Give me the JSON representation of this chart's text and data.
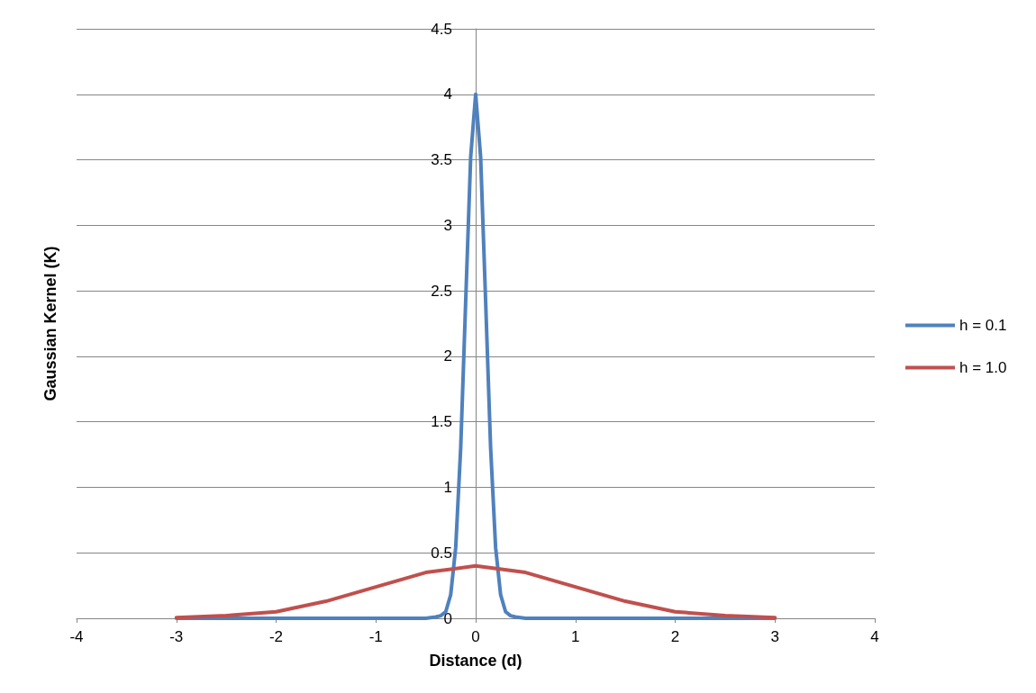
{
  "chart_data": {
    "type": "line",
    "xlabel": "Distance (d)",
    "ylabel": "Gaussian Kernel (K)",
    "xlim": [
      -4,
      4
    ],
    "xticks": [
      -4,
      -3,
      -2,
      -1,
      0,
      1,
      2,
      3,
      4
    ],
    "ylim": [
      0,
      4.5
    ],
    "yticks": [
      0,
      0.5,
      1,
      1.5,
      2,
      2.5,
      3,
      3.5,
      4,
      4.5
    ],
    "grid": "y",
    "legend": "right",
    "marker": "none",
    "line_style": "solid",
    "series": [
      {
        "name": "h = 0.1",
        "color": "#4f81bd",
        "x": [
          -3,
          -2,
          -1,
          -0.5,
          -0.4,
          -0.35,
          -0.3,
          -0.25,
          -0.2,
          -0.15,
          -0.1,
          -0.05,
          0,
          0.05,
          0.1,
          0.15,
          0.2,
          0.25,
          0.3,
          0.35,
          0.4,
          0.5,
          1,
          2,
          3
        ],
        "values": [
          0,
          0,
          0,
          0,
          0.01,
          0.02,
          0.05,
          0.18,
          0.54,
          1.3,
          2.42,
          3.52,
          4,
          3.52,
          2.42,
          1.3,
          0.54,
          0.18,
          0.05,
          0.02,
          0.01,
          0,
          0,
          0,
          0
        ]
      },
      {
        "name": "h = 1.0",
        "color": "#c0504d",
        "x": [
          -3,
          -2.5,
          -2,
          -1.5,
          -1,
          -0.5,
          0,
          0.5,
          1,
          1.5,
          2,
          2.5,
          3
        ],
        "values": [
          0.005,
          0.02,
          0.05,
          0.13,
          0.24,
          0.35,
          0.4,
          0.35,
          0.24,
          0.13,
          0.05,
          0.02,
          0.005
        ]
      }
    ]
  }
}
